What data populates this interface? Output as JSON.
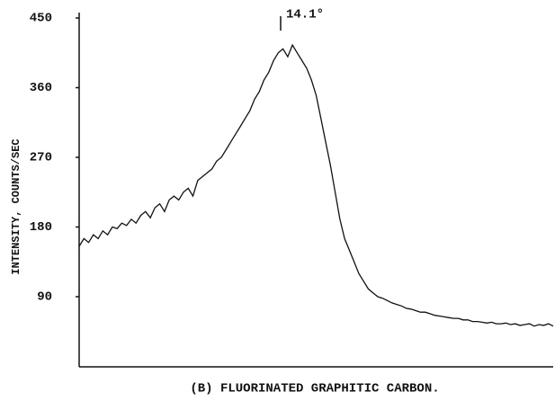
{
  "chart_data": {
    "type": "line",
    "title": "(B) FLUORINATED GRAPHITIC CARBON.",
    "y_label": "INTENSITY, COUNTS/SEC",
    "annotation": "14.1°",
    "x": [
      0,
      1,
      2,
      3,
      4,
      5,
      6,
      7,
      8,
      9,
      10,
      11,
      12,
      13,
      14,
      15,
      16,
      17,
      18,
      19,
      20,
      21,
      22,
      23,
      24,
      25,
      26,
      27,
      28,
      29,
      30,
      31,
      32,
      33,
      34,
      35,
      36,
      37,
      38,
      39,
      40,
      41,
      42,
      43,
      44,
      45,
      46,
      47,
      48,
      49,
      50,
      51,
      52,
      53,
      54,
      55,
      56,
      57,
      58,
      59,
      60,
      61,
      62,
      63,
      64,
      65,
      66,
      67,
      68,
      69,
      70,
      71,
      72,
      73,
      74,
      75,
      76,
      77,
      78,
      79,
      80,
      81,
      82,
      83,
      84,
      85,
      86,
      87,
      88,
      89,
      90,
      91,
      92,
      93,
      94,
      95,
      96,
      97,
      98,
      99,
      100
    ],
    "series": [
      {
        "color": "#111111",
        "values": [
          155,
          165,
          160,
          170,
          165,
          175,
          170,
          180,
          178,
          185,
          182,
          190,
          185,
          195,
          200,
          192,
          205,
          210,
          200,
          215,
          220,
          215,
          225,
          230,
          220,
          240,
          245,
          250,
          255,
          265,
          270,
          280,
          290,
          300,
          310,
          320,
          330,
          345,
          355,
          370,
          380,
          395,
          405,
          410,
          400,
          415,
          405,
          395,
          385,
          370,
          350,
          320,
          290,
          260,
          225,
          190,
          165,
          150,
          135,
          120,
          110,
          100,
          95,
          90,
          88,
          85,
          82,
          80,
          78,
          75,
          74,
          72,
          70,
          70,
          68,
          66,
          65,
          64,
          63,
          62,
          62,
          60,
          60,
          58,
          58,
          57,
          56,
          57,
          55,
          55,
          56,
          54,
          55,
          53,
          54,
          55,
          52,
          54,
          53,
          55,
          52
        ]
      }
    ],
    "xlim": [
      0,
      100
    ],
    "ylim": [
      0,
      450
    ],
    "yticks": [
      90,
      180,
      270,
      360,
      450
    ]
  }
}
